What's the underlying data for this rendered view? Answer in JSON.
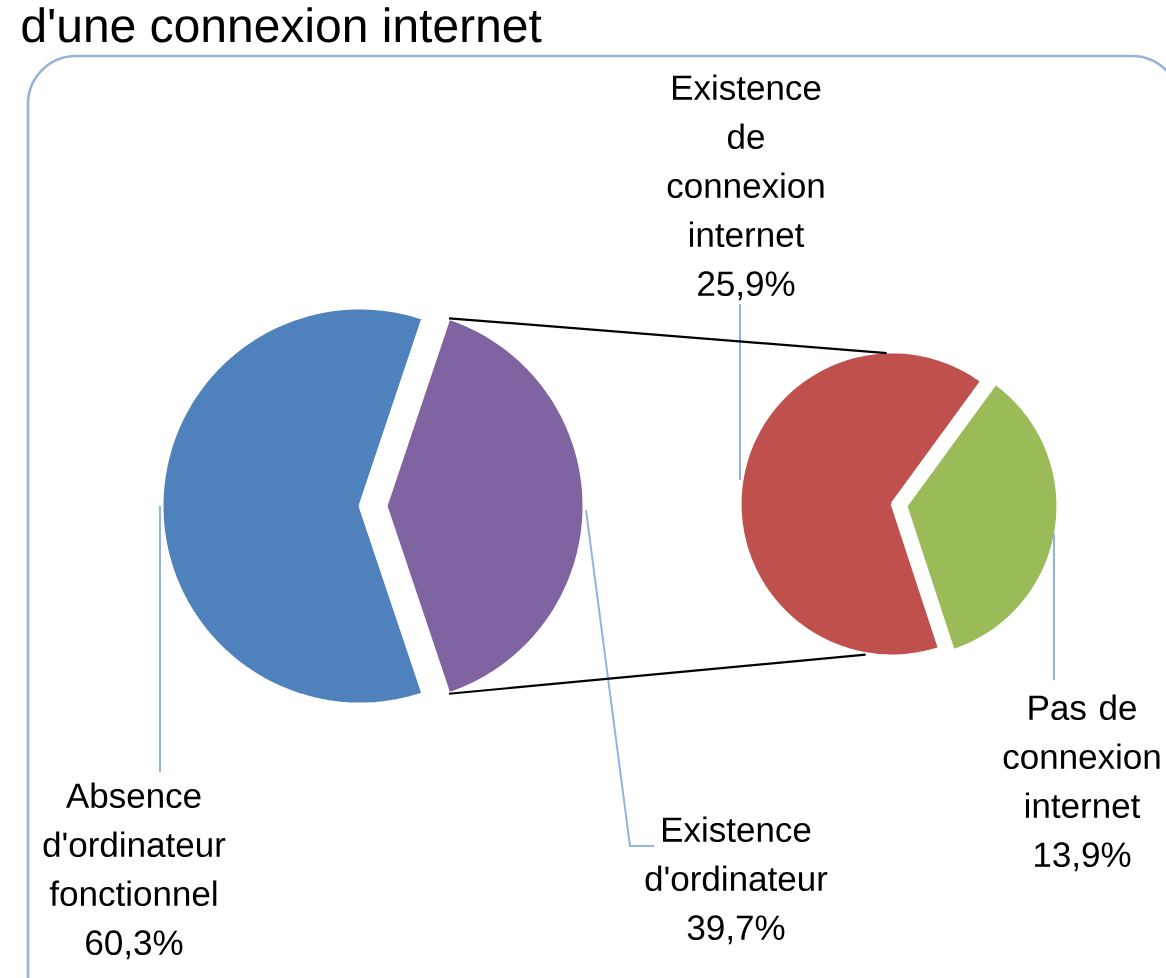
{
  "chart_data": [
    {
      "type": "pie",
      "title": "d'une connexion internet",
      "categories": [
        "Absence d'ordinateur fonctionnel",
        "Existence d'ordinateur"
      ],
      "values": [
        60.3,
        39.7
      ],
      "colors": [
        "#4f81bd",
        "#8064a2"
      ],
      "value_labels": [
        "60,3%",
        "39,7%"
      ]
    },
    {
      "type": "pie",
      "categories": [
        "Existence de connexion internet",
        "Pas de connexion internet"
      ],
      "values": [
        25.9,
        13.9
      ],
      "colors": [
        "#c0504d",
        "#9bbb59"
      ],
      "value_labels": [
        "25,9%",
        "13,9%"
      ]
    }
  ]
}
